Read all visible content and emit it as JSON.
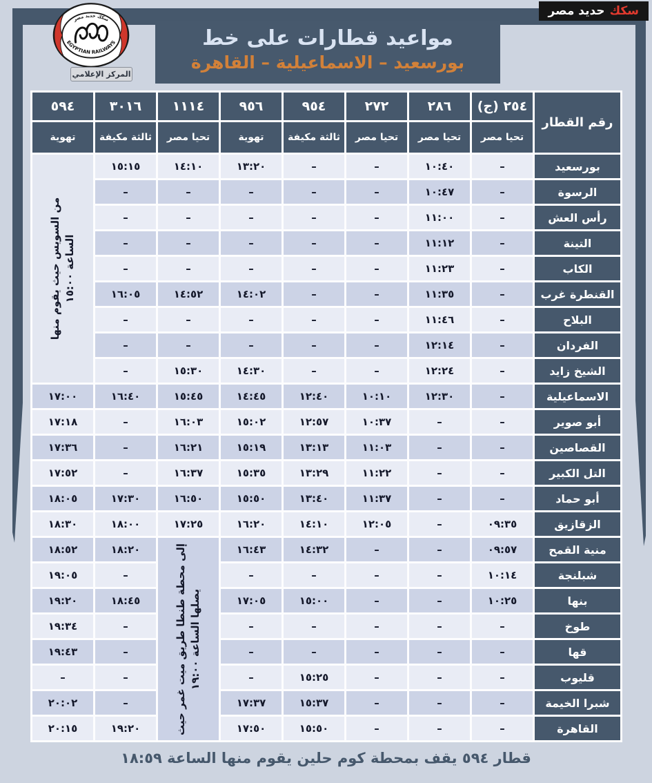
{
  "brand": {
    "badge_red": "سكك",
    "badge_rest": "حديد مصر",
    "logo_bottom_text": "EGYPTIAN RAILWAYS",
    "logo_top_text": "سكك حديد مصر",
    "media_center_label": "المركز الإعلامي"
  },
  "title": {
    "line1": "مواعيد قطارات على خط",
    "line2": "بورسعيد – الاسماعيلية – القاهرة"
  },
  "table": {
    "corner_header": "رقم القطار",
    "trains": [
      {
        "number": "٢٥٤ (ج)",
        "type": "تحيا مصر"
      },
      {
        "number": "٢٨٦",
        "type": "تحيا مصر"
      },
      {
        "number": "٢٧٢",
        "type": "تحيا مصر"
      },
      {
        "number": "٩٥٤",
        "type": "ثالثة مكيفة"
      },
      {
        "number": "٩٥٦",
        "type": "تهوية"
      },
      {
        "number": "١١١٤",
        "type": "تحيا مصر"
      },
      {
        "number": "٣٠١٦",
        "type": "ثالثة مكيفة"
      },
      {
        "number": "٥٩٤",
        "type": "تهوية"
      }
    ],
    "merges": [
      {
        "col": 7,
        "row": 0,
        "span": 9,
        "shade": "light",
        "lines": [
          "من السويس حيث يقوم منها",
          "الساعة ١٥:٠٠"
        ]
      },
      {
        "col": 5,
        "row": 15,
        "span": 8,
        "shade": "dark",
        "lines": [
          "إلى محطة طنطا طريق ميت غمر حيث",
          "يصلها الساعة ١٩:٠٠"
        ]
      }
    ],
    "rows": [
      {
        "station": "بورسعيد",
        "times": [
          "–",
          "١٠:٤٠",
          "–",
          "–",
          "١٣:٢٠",
          "١٤:١٠",
          "١٥:١٥",
          null
        ]
      },
      {
        "station": "الرسوة",
        "times": [
          "–",
          "١٠:٤٧",
          "–",
          "–",
          "–",
          "–",
          "–",
          null
        ]
      },
      {
        "station": "رأس العش",
        "times": [
          "–",
          "١١:٠٠",
          "–",
          "–",
          "–",
          "–",
          "–",
          null
        ]
      },
      {
        "station": "التينة",
        "times": [
          "–",
          "١١:١٢",
          "–",
          "–",
          "–",
          "–",
          "–",
          null
        ]
      },
      {
        "station": "الكاب",
        "times": [
          "–",
          "١١:٢٣",
          "–",
          "–",
          "–",
          "–",
          "–",
          null
        ]
      },
      {
        "station": "القنطرة غرب",
        "times": [
          "–",
          "١١:٣٥",
          "–",
          "–",
          "١٤:٠٢",
          "١٤:٥٢",
          "١٦:٠٥",
          null
        ]
      },
      {
        "station": "البلاح",
        "times": [
          "–",
          "١١:٤٦",
          "–",
          "–",
          "–",
          "–",
          "–",
          null
        ]
      },
      {
        "station": "الفردان",
        "times": [
          "–",
          "١٢:١٤",
          "–",
          "–",
          "–",
          "–",
          "–",
          null
        ]
      },
      {
        "station": "الشيخ زايد",
        "times": [
          "–",
          "١٢:٢٤",
          "–",
          "–",
          "١٤:٣٠",
          "١٥:٣٠",
          "–",
          null
        ]
      },
      {
        "station": "الاسماعيلية",
        "times": [
          "–",
          "١٢:٣٠",
          "١٠:١٠",
          "١٢:٤٠",
          "١٤:٤٥",
          "١٥:٤٥",
          "١٦:٤٠",
          "١٧:٠٠"
        ]
      },
      {
        "station": "أبو صوير",
        "times": [
          "–",
          "–",
          "١٠:٣٧",
          "١٢:٥٧",
          "١٥:٠٢",
          "١٦:٠٣",
          "–",
          "١٧:١٨"
        ]
      },
      {
        "station": "القصاصين",
        "times": [
          "–",
          "–",
          "١١:٠٣",
          "١٣:١٣",
          "١٥:١٩",
          "١٦:٢١",
          "–",
          "١٧:٣٦"
        ]
      },
      {
        "station": "التل الكبير",
        "times": [
          "–",
          "–",
          "١١:٢٢",
          "١٣:٢٩",
          "١٥:٣٥",
          "١٦:٣٧",
          "–",
          "١٧:٥٢"
        ]
      },
      {
        "station": "أبو حماد",
        "times": [
          "–",
          "–",
          "١١:٣٧",
          "١٣:٤٠",
          "١٥:٥٠",
          "١٦:٥٠",
          "١٧:٣٠",
          "١٨:٠٥"
        ]
      },
      {
        "station": "الزقازيق",
        "times": [
          "٠٩:٣٥",
          "–",
          "١٢:٠٥",
          "١٤:١٠",
          "١٦:٢٠",
          "١٧:٢٥",
          "١٨:٠٠",
          "١٨:٣٠"
        ]
      },
      {
        "station": "منية القمح",
        "times": [
          "٠٩:٥٧",
          "–",
          "–",
          "١٤:٣٢",
          "١٦:٤٣",
          null,
          "١٨:٢٠",
          "١٨:٥٢"
        ]
      },
      {
        "station": "شبلنجة",
        "times": [
          "١٠:١٤",
          "–",
          "–",
          "–",
          "–",
          null,
          "–",
          "١٩:٠٥"
        ]
      },
      {
        "station": "بنها",
        "times": [
          "١٠:٢٥",
          "–",
          "–",
          "١٥:٠٠",
          "١٧:٠٥",
          null,
          "١٨:٤٥",
          "١٩:٢٠"
        ]
      },
      {
        "station": "طوخ",
        "times": [
          "–",
          "–",
          "–",
          "–",
          "–",
          null,
          "–",
          "١٩:٣٤"
        ]
      },
      {
        "station": "قها",
        "times": [
          "–",
          "–",
          "–",
          "–",
          "–",
          null,
          "–",
          "١٩:٤٣"
        ]
      },
      {
        "station": "قليوب",
        "times": [
          "–",
          "–",
          "–",
          "١٥:٢٥",
          "–",
          null,
          "–",
          "–"
        ]
      },
      {
        "station": "شبرا الخيمة",
        "times": [
          "–",
          "–",
          "–",
          "١٥:٣٧",
          "١٧:٣٧",
          null,
          "–",
          "٢٠:٠٢"
        ]
      },
      {
        "station": "القاهرة",
        "times": [
          "–",
          "–",
          "–",
          "١٥:٥٠",
          "١٧:٥٠",
          null,
          "١٩:٢٠",
          "٢٠:١٥"
        ]
      }
    ]
  },
  "footer_note": "قطار ٥٩٤ يقف بمحطة كوم حلين يقوم منها الساعة ١٨:٥٩",
  "colors": {
    "frame_dark_slate": "#46586c",
    "page_background": "#cdd4e0",
    "row_light": "#e9ecf5",
    "row_dark": "#ccd3e6",
    "title_orange": "#d28139",
    "title_light_blue": "#d9e3f2",
    "badge_red": "#e23a2e",
    "badge_black": "#161616",
    "logo_red": "#cf372c",
    "time_text": "#14182a"
  }
}
